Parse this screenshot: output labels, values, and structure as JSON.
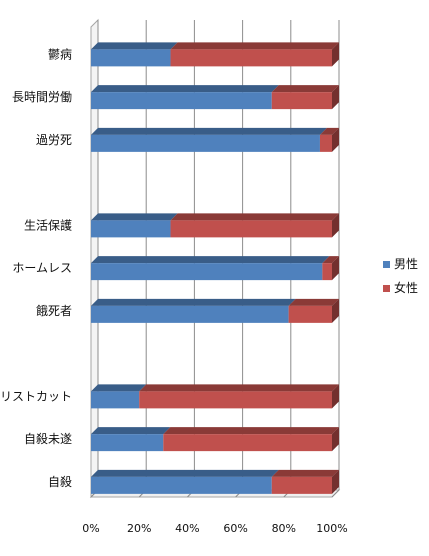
{
  "chart_data": {
    "type": "bar",
    "orientation": "horizontal",
    "stacked": "percent",
    "style": "3d",
    "categories": [
      "鬱病",
      "長時間労働",
      "過労死",
      "",
      "生活保護",
      "ホームレス",
      "餓死者",
      "",
      "リストカット",
      "自殺未遂",
      "自殺"
    ],
    "series": [
      {
        "name": "男性",
        "color": "#4F81BD",
        "values": [
          33,
          75,
          95,
          null,
          33,
          96,
          82,
          null,
          20,
          30,
          75
        ]
      },
      {
        "name": "女性",
        "color": "#C0504D",
        "values": [
          67,
          25,
          5,
          null,
          67,
          4,
          18,
          null,
          80,
          70,
          25
        ]
      }
    ],
    "xlim": [
      0,
      100
    ],
    "x_ticks": [
      "0%",
      "20%",
      "40%",
      "60%",
      "80%",
      "100%"
    ],
    "xlabel": "",
    "ylabel": "",
    "title": "",
    "grid": true,
    "legend_position": "right"
  }
}
